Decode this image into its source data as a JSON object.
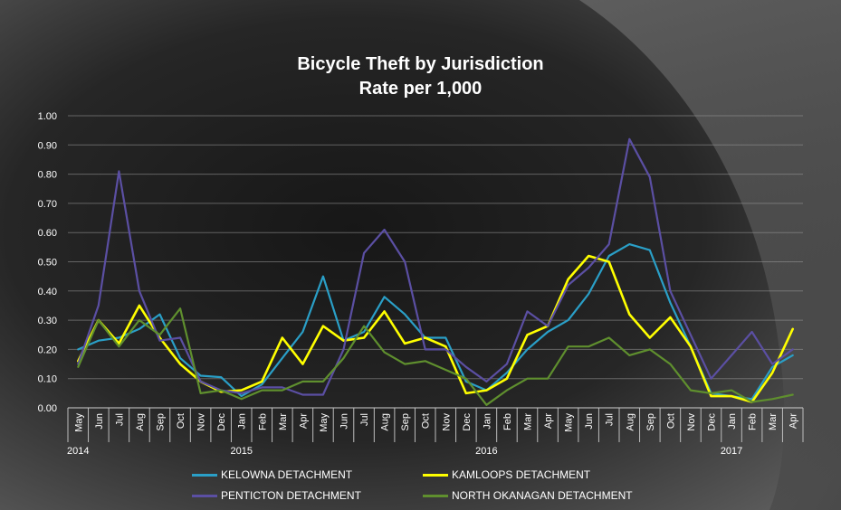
{
  "chart_data": {
    "type": "line",
    "title": "Bicycle Theft by Jurisdiction",
    "subtitle": "Rate per 1,000",
    "xlabel": "",
    "ylabel": "",
    "ylim": [
      0,
      1.0
    ],
    "yticks": [
      "0.00",
      "0.10",
      "0.20",
      "0.30",
      "0.40",
      "0.50",
      "0.60",
      "0.70",
      "0.80",
      "0.90",
      "1.00"
    ],
    "grid": true,
    "legend_position": "bottom",
    "categories": [
      "May",
      "Jun",
      "Jul",
      "Aug",
      "Sep",
      "Oct",
      "Nov",
      "Dec",
      "Jan",
      "Feb",
      "Mar",
      "Apr",
      "May",
      "Jun",
      "Jul",
      "Aug",
      "Sep",
      "Oct",
      "Nov",
      "Dec",
      "Jan",
      "Feb",
      "Mar",
      "Apr",
      "May",
      "Jun",
      "Jul",
      "Aug",
      "Sep",
      "Oct",
      "Nov",
      "Dec",
      "Jan",
      "Feb",
      "Mar",
      "Apr"
    ],
    "year_labels": [
      {
        "label": "2014",
        "index": 0
      },
      {
        "label": "2015",
        "index": 8
      },
      {
        "label": "2016",
        "index": 20
      },
      {
        "label": "2017",
        "index": 32
      }
    ],
    "series": [
      {
        "name": "KELOWNA DETACHMENT",
        "color": "#2a9fc7",
        "values": [
          0.2,
          0.23,
          0.24,
          0.27,
          0.32,
          0.17,
          0.11,
          0.105,
          0.04,
          0.08,
          0.17,
          0.26,
          0.45,
          0.23,
          0.26,
          0.38,
          0.32,
          0.24,
          0.24,
          0.09,
          0.06,
          0.12,
          0.2,
          0.26,
          0.3,
          0.39,
          0.52,
          0.56,
          0.54,
          0.36,
          0.21,
          0.05,
          0.04,
          0.03,
          0.14,
          0.18
        ]
      },
      {
        "name": "KAMLOOPS DETACHMENT",
        "color": "#ffff00",
        "values": [
          0.16,
          0.3,
          0.22,
          0.35,
          0.24,
          0.15,
          0.09,
          0.055,
          0.06,
          0.09,
          0.24,
          0.15,
          0.28,
          0.23,
          0.24,
          0.33,
          0.22,
          0.24,
          0.21,
          0.05,
          0.06,
          0.1,
          0.25,
          0.28,
          0.44,
          0.52,
          0.5,
          0.32,
          0.24,
          0.31,
          0.21,
          0.04,
          0.04,
          0.02,
          0.12,
          0.27
        ]
      },
      {
        "name": "PENTICTON DETACHMENT",
        "color": "#5b4fa3",
        "values": [
          0.15,
          0.35,
          0.81,
          0.4,
          0.23,
          0.24,
          0.09,
          0.06,
          0.05,
          0.07,
          0.07,
          0.045,
          0.045,
          0.2,
          0.53,
          0.61,
          0.5,
          0.2,
          0.2,
          0.14,
          0.09,
          0.15,
          0.33,
          0.28,
          0.42,
          0.48,
          0.56,
          0.92,
          0.79,
          0.4,
          0.25,
          0.1,
          0.18,
          0.26,
          0.15,
          0.2
        ]
      },
      {
        "name": "NORTH OKANAGAN DETACHMENT",
        "color": "#5f8f2e",
        "values": [
          0.14,
          0.3,
          0.21,
          0.3,
          0.25,
          0.34,
          0.05,
          0.06,
          0.03,
          0.06,
          0.06,
          0.09,
          0.09,
          0.17,
          0.28,
          0.19,
          0.15,
          0.16,
          0.13,
          0.1,
          0.01,
          0.06,
          0.1,
          0.1,
          0.21,
          0.21,
          0.24,
          0.18,
          0.2,
          0.15,
          0.06,
          0.05,
          0.06,
          0.02,
          0.03,
          0.045
        ]
      }
    ]
  }
}
